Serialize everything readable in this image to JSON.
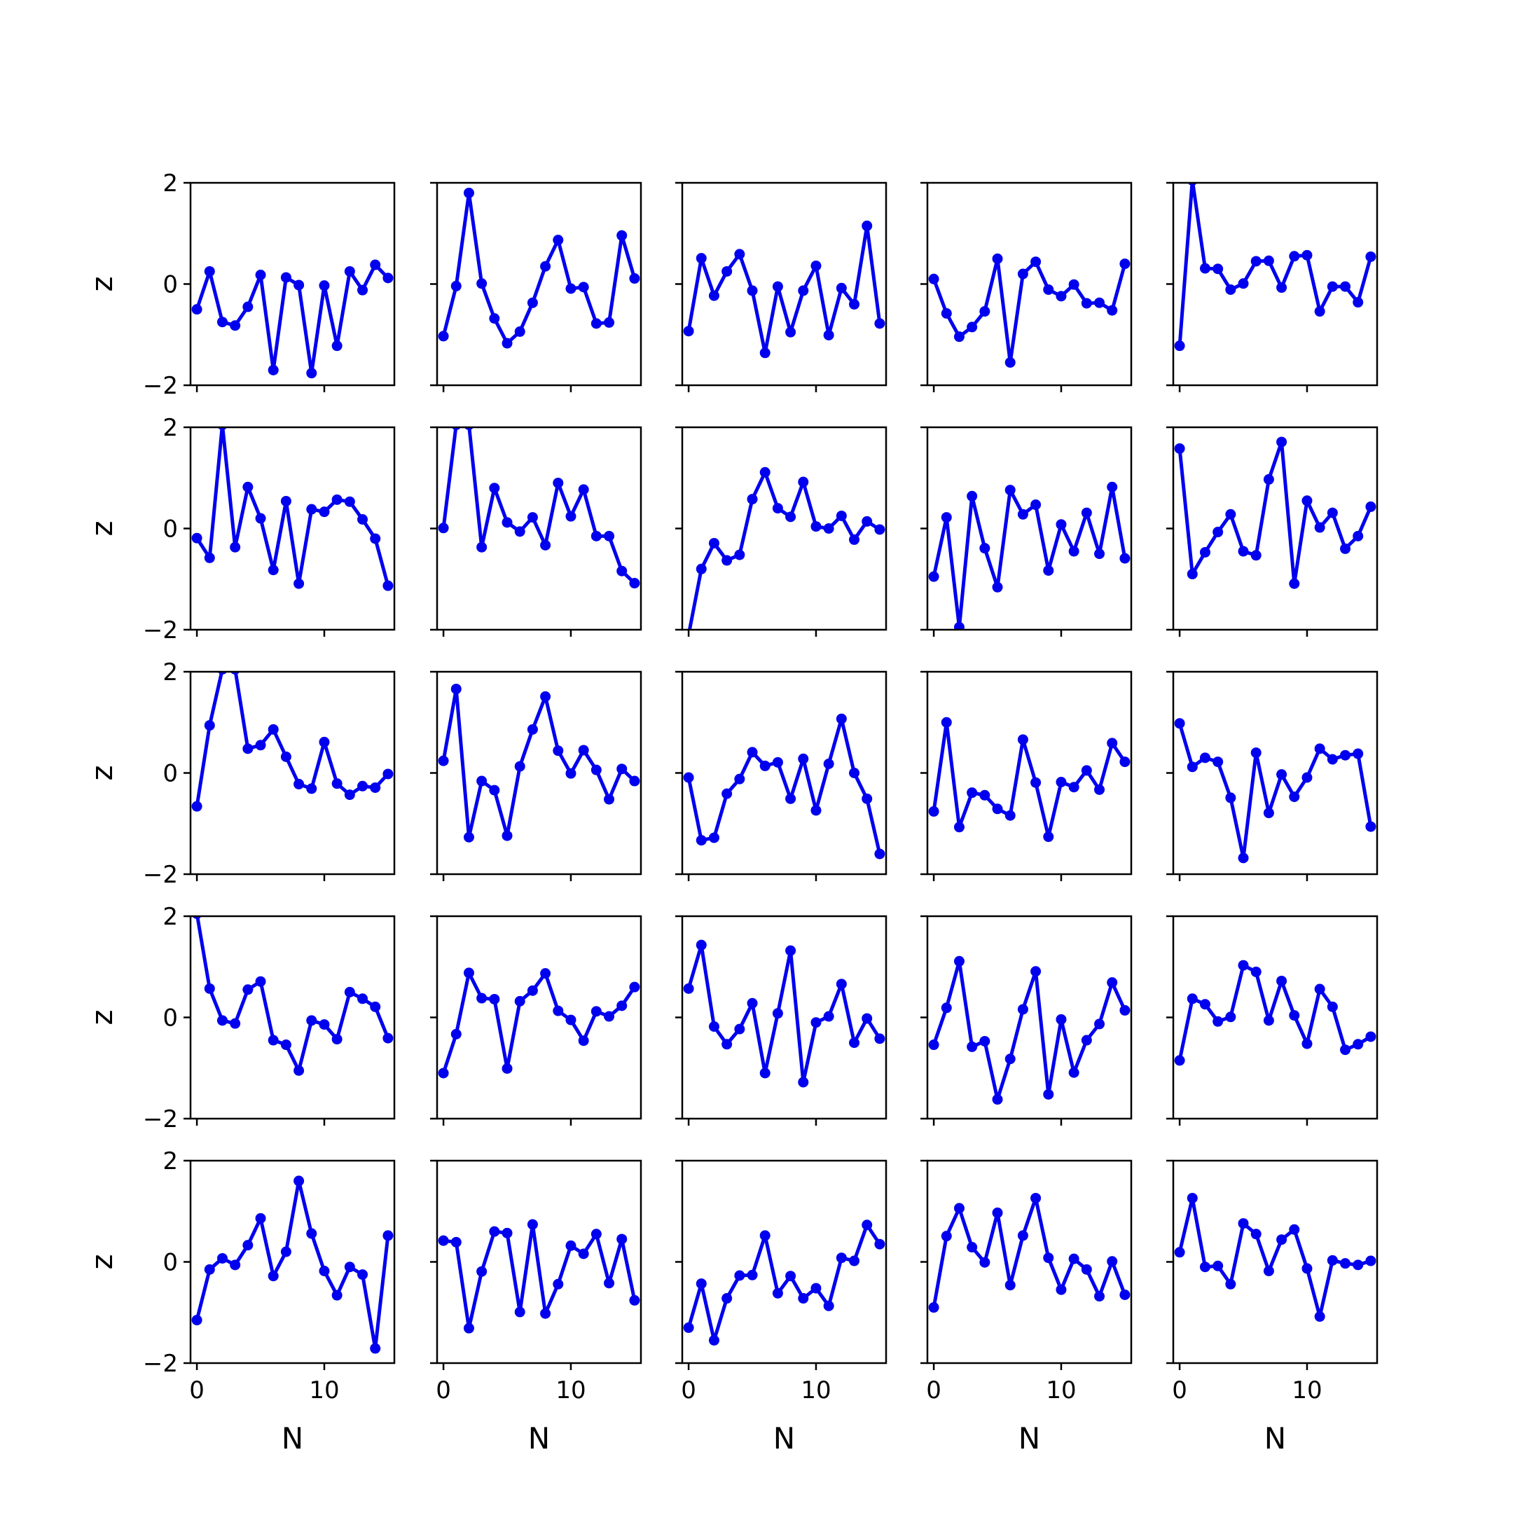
{
  "chart_data": {
    "type": "line",
    "layout": "5x5 grid of subplots",
    "x": [
      0,
      1,
      2,
      3,
      4,
      5,
      6,
      7,
      8,
      9,
      10,
      11,
      12,
      13,
      14,
      15
    ],
    "xlabel": "N",
    "ylabel": "z",
    "xlim": [
      -0.5,
      15.5
    ],
    "ylim": [
      -2,
      2
    ],
    "xticks": [
      0,
      10
    ],
    "yticks": [
      -2,
      0,
      2
    ],
    "xtick_labels": [
      "0",
      "10"
    ],
    "ytick_labels": [
      "−2",
      "0",
      "2"
    ],
    "shared_axes": true,
    "grid": false,
    "series_color": "#0000ee",
    "marker": "circle",
    "subplots": [
      {
        "row": 0,
        "col": 0,
        "values": [
          -0.5,
          0.25,
          -0.75,
          -0.82,
          -0.45,
          0.18,
          -1.7,
          0.13,
          -0.02,
          -1.76,
          -0.03,
          -1.22,
          0.25,
          -0.12,
          0.38,
          0.12
        ]
      },
      {
        "row": 0,
        "col": 1,
        "values": [
          -1.03,
          -0.04,
          1.8,
          0.01,
          -0.68,
          -1.17,
          -0.94,
          -0.37,
          0.35,
          0.87,
          -0.09,
          -0.06,
          -0.78,
          -0.76,
          0.96,
          0.11
        ]
      },
      {
        "row": 0,
        "col": 2,
        "values": [
          -0.93,
          0.51,
          -0.23,
          0.25,
          0.59,
          -0.13,
          -1.36,
          -0.05,
          -0.95,
          -0.13,
          0.36,
          -1.01,
          -0.08,
          -0.4,
          1.15,
          -0.78
        ]
      },
      {
        "row": 0,
        "col": 3,
        "values": [
          0.1,
          -0.58,
          -1.04,
          -0.85,
          -0.54,
          0.5,
          -1.55,
          0.2,
          0.44,
          -0.11,
          -0.24,
          -0.01,
          -0.38,
          -0.37,
          -0.52,
          0.4
        ]
      },
      {
        "row": 0,
        "col": 4,
        "values": [
          -1.22,
          2.05,
          0.31,
          0.3,
          -0.11,
          0.01,
          0.45,
          0.46,
          -0.07,
          0.55,
          0.57,
          -0.54,
          -0.05,
          -0.05,
          -0.36,
          0.54
        ]
      },
      {
        "row": 1,
        "col": 0,
        "values": [
          -0.19,
          -0.58,
          2.05,
          -0.37,
          0.82,
          0.2,
          -0.82,
          0.54,
          -1.09,
          0.38,
          0.33,
          0.57,
          0.53,
          0.18,
          -0.2,
          -1.13
        ]
      },
      {
        "row": 1,
        "col": 1,
        "values": [
          0.01,
          2.05,
          2.05,
          -0.37,
          0.8,
          0.12,
          -0.06,
          0.22,
          -0.33,
          0.9,
          0.24,
          0.77,
          -0.15,
          -0.15,
          -0.84,
          -1.08
        ]
      },
      {
        "row": 1,
        "col": 2,
        "values": [
          -2.1,
          -0.8,
          -0.29,
          -0.63,
          -0.52,
          0.58,
          1.11,
          0.4,
          0.23,
          0.92,
          0.04,
          0.0,
          0.25,
          -0.22,
          0.14,
          -0.02
        ]
      },
      {
        "row": 1,
        "col": 3,
        "values": [
          -0.95,
          0.22,
          -1.95,
          0.64,
          -0.39,
          -1.16,
          0.76,
          0.28,
          0.47,
          -0.83,
          0.08,
          -0.45,
          0.31,
          -0.5,
          0.82,
          -0.59
        ]
      },
      {
        "row": 1,
        "col": 4,
        "values": [
          1.58,
          -0.9,
          -0.47,
          -0.07,
          0.28,
          -0.45,
          -0.53,
          0.97,
          1.71,
          -1.09,
          0.55,
          0.02,
          0.31,
          -0.4,
          -0.15,
          0.43
        ]
      },
      {
        "row": 2,
        "col": 0,
        "values": [
          -0.66,
          0.94,
          2.05,
          2.05,
          0.48,
          0.55,
          0.86,
          0.32,
          -0.22,
          -0.31,
          0.61,
          -0.21,
          -0.43,
          -0.26,
          -0.29,
          -0.02
        ]
      },
      {
        "row": 2,
        "col": 1,
        "values": [
          0.24,
          1.66,
          -1.27,
          -0.16,
          -0.34,
          -1.24,
          0.13,
          0.86,
          1.51,
          0.44,
          -0.01,
          0.45,
          0.06,
          -0.52,
          0.08,
          -0.16
        ]
      },
      {
        "row": 2,
        "col": 2,
        "values": [
          -0.09,
          -1.33,
          -1.28,
          -0.41,
          -0.12,
          0.41,
          0.14,
          0.21,
          -0.51,
          0.28,
          -0.74,
          0.18,
          1.07,
          0.0,
          -0.51,
          -1.6
        ]
      },
      {
        "row": 2,
        "col": 3,
        "values": [
          -0.76,
          1.0,
          -1.07,
          -0.39,
          -0.44,
          -0.71,
          -0.84,
          0.66,
          -0.19,
          -1.26,
          -0.18,
          -0.28,
          0.05,
          -0.33,
          0.59,
          0.22
        ]
      },
      {
        "row": 2,
        "col": 4,
        "values": [
          0.98,
          0.12,
          0.3,
          0.22,
          -0.49,
          -1.68,
          0.4,
          -0.79,
          -0.03,
          -0.47,
          -0.09,
          0.48,
          0.27,
          0.35,
          0.38,
          -1.06
        ]
      },
      {
        "row": 3,
        "col": 0,
        "values": [
          2.05,
          0.57,
          -0.06,
          -0.12,
          0.55,
          0.71,
          -0.45,
          -0.54,
          -1.05,
          -0.06,
          -0.14,
          -0.43,
          0.5,
          0.37,
          0.21,
          -0.41
        ]
      },
      {
        "row": 3,
        "col": 1,
        "values": [
          -1.1,
          -0.33,
          0.88,
          0.38,
          0.36,
          -1.01,
          0.32,
          0.53,
          0.87,
          0.13,
          -0.05,
          -0.46,
          0.12,
          0.02,
          0.23,
          0.6
        ]
      },
      {
        "row": 3,
        "col": 2,
        "values": [
          0.57,
          1.43,
          -0.18,
          -0.53,
          -0.23,
          0.28,
          -1.1,
          0.08,
          1.32,
          -1.28,
          -0.1,
          0.02,
          0.66,
          -0.5,
          -0.02,
          -0.42
        ]
      },
      {
        "row": 3,
        "col": 3,
        "values": [
          -0.54,
          0.19,
          1.11,
          -0.58,
          -0.47,
          -1.62,
          -0.82,
          0.16,
          0.91,
          -1.52,
          -0.04,
          -1.09,
          -0.45,
          -0.13,
          0.69,
          0.14
        ]
      },
      {
        "row": 3,
        "col": 4,
        "values": [
          -0.85,
          0.37,
          0.26,
          -0.08,
          0.01,
          1.03,
          0.9,
          -0.06,
          0.72,
          0.04,
          -0.52,
          0.56,
          0.21,
          -0.64,
          -0.53,
          -0.38
        ]
      },
      {
        "row": 4,
        "col": 0,
        "values": [
          -1.15,
          -0.15,
          0.07,
          -0.06,
          0.33,
          0.86,
          -0.28,
          0.2,
          1.6,
          0.56,
          -0.18,
          -0.66,
          -0.1,
          -0.25,
          -1.71,
          0.52
        ]
      },
      {
        "row": 4,
        "col": 1,
        "values": [
          0.42,
          0.39,
          -1.31,
          -0.19,
          0.6,
          0.57,
          -0.99,
          0.74,
          -1.02,
          -0.44,
          0.32,
          0.16,
          0.55,
          -0.42,
          0.45,
          -0.76
        ]
      },
      {
        "row": 4,
        "col": 2,
        "values": [
          -1.3,
          -0.43,
          -1.55,
          -0.72,
          -0.27,
          -0.26,
          0.52,
          -0.62,
          -0.28,
          -0.72,
          -0.52,
          -0.87,
          0.08,
          0.02,
          0.73,
          0.35
        ]
      },
      {
        "row": 4,
        "col": 3,
        "values": [
          -0.9,
          0.51,
          1.06,
          0.29,
          -0.01,
          0.97,
          -0.46,
          0.52,
          1.26,
          0.08,
          -0.55,
          0.06,
          -0.15,
          -0.68,
          0.01,
          -0.65
        ]
      },
      {
        "row": 4,
        "col": 4,
        "values": [
          0.19,
          1.26,
          -0.1,
          -0.08,
          -0.44,
          0.76,
          0.55,
          -0.18,
          0.44,
          0.64,
          -0.13,
          -1.08,
          0.03,
          -0.03,
          -0.06,
          0.02
        ]
      }
    ]
  }
}
